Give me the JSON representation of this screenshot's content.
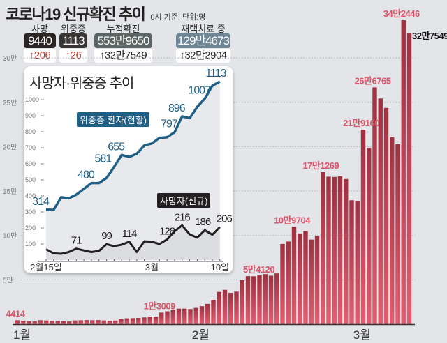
{
  "header": {
    "title": "코로나19 신규확진 추이",
    "subtitle": "0시 기준, 단위:명",
    "stats": [
      {
        "label": "사망",
        "value": "9440",
        "change": "↑206",
        "color": "#2a2424",
        "change_color": "#c0392b"
      },
      {
        "label": "위중증",
        "value": "1113",
        "change": "↑26",
        "color": "#3a3636",
        "change_color": "#c0392b"
      },
      {
        "label": "누적확진",
        "value": "553만9650",
        "change": "↑32만7549",
        "color": "#5b6664",
        "change_color": "#222"
      },
      {
        "label": "재택치료 중",
        "value": "129만4673",
        "change": "↑32만2904",
        "color": "#6f8695",
        "change_color": "#222"
      }
    ]
  },
  "chart_data": [
    {
      "type": "bar",
      "title": "",
      "y_ticks": [
        "5만",
        "10만",
        "15만",
        "20만",
        "25만",
        "30만"
      ],
      "y_tick_values": [
        50000,
        100000,
        150000,
        200000,
        250000,
        300000
      ],
      "ylim": [
        0,
        350000
      ],
      "grid": true,
      "x_labels": [
        {
          "text": "1월",
          "index": 0
        },
        {
          "text": "2월",
          "index": 31
        },
        {
          "text": "3월",
          "index": 59
        }
      ],
      "dates": "1월 1일 – 3월 10일 (daily)",
      "values": [
        4414,
        3830,
        3130,
        3020,
        4440,
        4120,
        3710,
        3510,
        3370,
        3000,
        4190,
        4380,
        4540,
        4420,
        4540,
        4190,
        3850,
        4070,
        5800,
        6600,
        6770,
        7000,
        7620,
        8570,
        8570,
        13009,
        14500,
        16100,
        17500,
        17530,
        17080,
        18340,
        20270,
        22900,
        27440,
        36360,
        38690,
        35290,
        36720,
        49570,
        54120,
        53930,
        54940,
        56430,
        54620,
        57180,
        90440,
        93140,
        109704,
        102210,
        104830,
        95360,
        99570,
        171269,
        166200,
        165890,
        166720,
        163560,
        139620,
        138990,
        219160,
        198800,
        266765,
        254330,
        243630,
        210720,
        202720,
        342446,
        327549
      ],
      "annotations": [
        {
          "text": "4414",
          "index": 0
        },
        {
          "text": "1만3009",
          "index": 25
        },
        {
          "text": "5만4120",
          "index": 40
        },
        {
          "text": "10만9704",
          "index": 48
        },
        {
          "text": "17만1269",
          "index": 53
        },
        {
          "text": "21만9160",
          "index": 60
        },
        {
          "text": "26만6765",
          "index": 62
        },
        {
          "text": "34만2446",
          "index": 67
        },
        {
          "text": "32만7549",
          "index": 68
        }
      ],
      "bar_color": "#d9566a"
    },
    {
      "type": "line",
      "title": "사망자·위중증 추이",
      "ylim": [
        0,
        1100
      ],
      "y_ticks": [
        100,
        200,
        300,
        400,
        500,
        600,
        700,
        800,
        900,
        1000
      ],
      "x_labels": [
        {
          "text": "2월15일",
          "index": 0
        },
        {
          "text": "3월",
          "index": 14
        },
        {
          "text": "10일",
          "index": 23
        }
      ],
      "series": [
        {
          "name": "위중증 환자(현황)",
          "color": "#1f5f85",
          "values": [
            314,
            313,
            392,
            385,
            408,
            444,
            480,
            480,
            512,
            581,
            655,
            643,
            663,
            715,
            727,
            762,
            766,
            797,
            896,
            885,
            955,
            1007,
            1087,
            1113
          ],
          "labels": [
            0,
            6,
            9,
            10,
            17,
            18,
            21,
            23
          ]
        },
        {
          "name": "사망자(신규)",
          "color": "#231f20",
          "values": [
            67,
            42,
            39,
            50,
            71,
            60,
            50,
            57,
            99,
            86,
            96,
            114,
            50,
            117,
            114,
            100,
            128,
            180,
            216,
            160,
            140,
            186,
            158,
            206
          ],
          "labels": [
            4,
            8,
            11,
            16,
            18,
            21,
            23
          ]
        }
      ]
    }
  ]
}
